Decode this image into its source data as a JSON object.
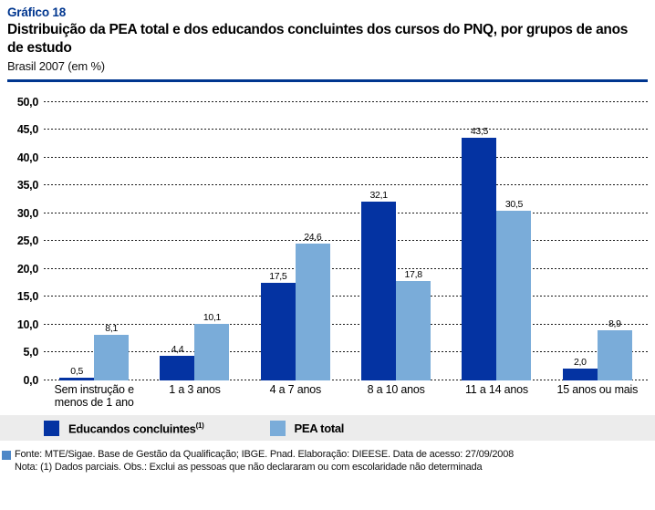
{
  "header": {
    "graph_label": "Gráfico 18",
    "title": "Distribuição da PEA total e dos educandos concluintes dos cursos do PNQ, por grupos de anos de estudo",
    "subtitle": "Brasil 2007 (em %)"
  },
  "chart_data": {
    "type": "bar",
    "title": "Distribuição da PEA total e dos educandos concluintes dos cursos do PNQ, por grupos de anos de estudo",
    "subtitle": "Brasil 2007 (em %)",
    "categories": [
      "Sem instrução e menos de 1 ano",
      "1 a 3 anos",
      "4 a 7 anos",
      "8 a 10 anos",
      "11 a 14 anos",
      "15 anos ou mais"
    ],
    "series": [
      {
        "name": "Educandos concluintes(1)",
        "color": "#0433A2",
        "values": [
          0.5,
          4.4,
          17.5,
          32.1,
          43.5,
          2.0
        ],
        "labels": [
          "0,5",
          "4,4",
          "17,5",
          "32,1",
          "43,5",
          "2,0"
        ]
      },
      {
        "name": "PEA total",
        "color": "#7AACD9",
        "values": [
          8.1,
          10.1,
          24.6,
          17.8,
          30.5,
          8.9
        ],
        "labels": [
          "8,1",
          "10,1",
          "24,6",
          "17,8",
          "30,5",
          "8,9"
        ]
      }
    ],
    "xlabel": "",
    "ylabel": "",
    "ylim": [
      0,
      50
    ],
    "ytick_step": 5,
    "ytick_labels": [
      "0,0",
      "5,0",
      "10,0",
      "15,0",
      "20,0",
      "25,0",
      "30,0",
      "35,0",
      "40,0",
      "45,0",
      "50,0"
    ],
    "grid": "horizontal-dotted",
    "legend_position": "bottom"
  },
  "legend": {
    "items": [
      {
        "label": "Educandos concluintes",
        "superscript": "(1)",
        "color": "#0433A2"
      },
      {
        "label": "PEA total",
        "superscript": "",
        "color": "#7AACD9"
      }
    ]
  },
  "footer": {
    "source": "Fonte: MTE/Sigae. Base de Gestão da Qualificação; IBGE. Pnad. Elaboração: DIEESE. Data de acesso: 27/09/2008",
    "note": "Nota: (1) Dados parciais. Obs.: Exclui as pessoas que não declararam ou com escolaridade não determinada",
    "bullet_color": "#4D87C7"
  },
  "colors": {
    "accent_blue": "#00368F",
    "dark_bar": "#0433A2",
    "light_bar": "#7AACD9",
    "legend_band": "#ECECEC",
    "footer_bullet": "#4D87C7"
  }
}
